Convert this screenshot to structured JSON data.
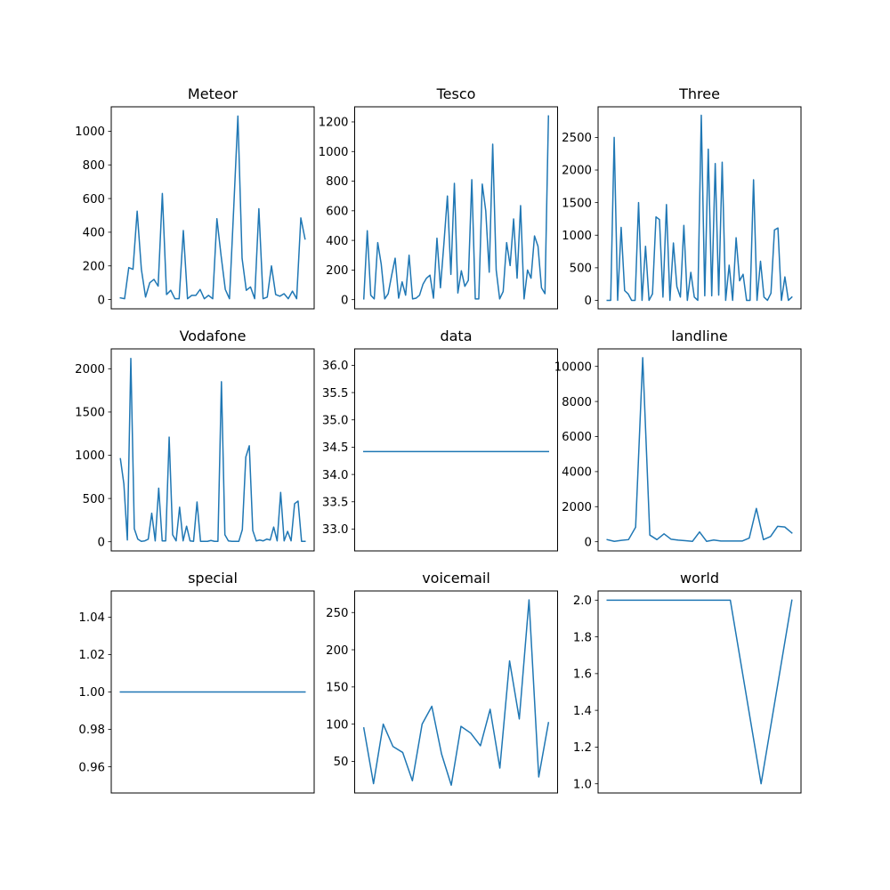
{
  "chart_data": [
    {
      "type": "line",
      "title": "Meteor",
      "ylim": [
        -55,
        1145
      ],
      "yticks": [
        0,
        200,
        400,
        600,
        800,
        1000
      ],
      "grid": false,
      "xticks_visible": false,
      "series": [
        {
          "color": "#1f77b4",
          "values": [
            10,
            5,
            190,
            180,
            525,
            180,
            15,
            100,
            120,
            80,
            630,
            30,
            55,
            5,
            5,
            410,
            5,
            25,
            25,
            60,
            5,
            25,
            5,
            480,
            260,
            60,
            5,
            540,
            1090,
            245,
            55,
            75,
            5,
            540,
            5,
            15,
            200,
            30,
            20,
            35,
            5,
            50,
            5,
            485,
            360
          ]
        }
      ]
    },
    {
      "type": "line",
      "title": "Tesco",
      "ylim": [
        -62,
        1302
      ],
      "yticks": [
        0,
        200,
        400,
        600,
        800,
        1000,
        1200
      ],
      "grid": false,
      "xticks_visible": false,
      "series": [
        {
          "color": "#1f77b4",
          "values": [
            5,
            465,
            30,
            5,
            385,
            240,
            5,
            40,
            165,
            280,
            10,
            120,
            30,
            300,
            5,
            10,
            30,
            105,
            145,
            165,
            10,
            415,
            80,
            380,
            700,
            170,
            785,
            45,
            195,
            90,
            130,
            810,
            5,
            5,
            780,
            600,
            185,
            1050,
            200,
            5,
            55,
            385,
            230,
            545,
            145,
            635,
            5,
            200,
            145,
            430,
            360,
            80,
            40,
            1240
          ]
        }
      ]
    },
    {
      "type": "line",
      "title": "Three",
      "ylim": [
        -130,
        2970
      ],
      "yticks": [
        0,
        500,
        1000,
        1500,
        2000,
        2500
      ],
      "grid": false,
      "xticks_visible": false,
      "series": [
        {
          "color": "#1f77b4",
          "values": [
            0,
            0,
            2500,
            0,
            1120,
            150,
            100,
            0,
            0,
            1500,
            0,
            830,
            0,
            100,
            1280,
            1240,
            50,
            1470,
            0,
            880,
            210,
            50,
            1150,
            0,
            430,
            50,
            0,
            2840,
            70,
            2320,
            70,
            2100,
            80,
            2120,
            0,
            540,
            0,
            960,
            300,
            400,
            0,
            0,
            1850,
            0,
            600,
            50,
            0,
            110,
            1080,
            1110,
            0,
            360,
            0,
            50
          ]
        }
      ]
    },
    {
      "type": "line",
      "title": "Vodafone",
      "ylim": [
        -106,
        2230
      ],
      "yticks": [
        0,
        500,
        1000,
        1500,
        2000
      ],
      "grid": false,
      "xticks_visible": false,
      "series": [
        {
          "color": "#1f77b4",
          "values": [
            960,
            670,
            20,
            2120,
            150,
            30,
            5,
            10,
            30,
            330,
            10,
            620,
            10,
            10,
            1210,
            80,
            10,
            400,
            10,
            180,
            10,
            5,
            460,
            5,
            5,
            5,
            15,
            5,
            5,
            1850,
            80,
            10,
            5,
            5,
            5,
            140,
            980,
            1110,
            130,
            10,
            20,
            10,
            30,
            20,
            170,
            10,
            570,
            10,
            120,
            10,
            440,
            470,
            5,
            5
          ]
        }
      ]
    },
    {
      "type": "line",
      "title": "data",
      "ylim": [
        32.6,
        36.3
      ],
      "yticks": [
        33.0,
        33.5,
        34.0,
        34.5,
        35.0,
        35.5,
        36.0
      ],
      "grid": false,
      "xticks_visible": false,
      "series": [
        {
          "color": "#1f77b4",
          "values": [
            34.42,
            34.42
          ]
        }
      ]
    },
    {
      "type": "line",
      "title": "landline",
      "ylim": [
        -524,
        11000
      ],
      "yticks": [
        0,
        2000,
        4000,
        6000,
        8000,
        10000
      ],
      "grid": false,
      "xticks_visible": false,
      "series": [
        {
          "color": "#1f77b4",
          "values": [
            120,
            20,
            80,
            120,
            830,
            10500,
            380,
            120,
            450,
            140,
            90,
            60,
            20,
            560,
            20,
            100,
            40,
            40,
            40,
            40,
            210,
            1900,
            120,
            300,
            880,
            840,
            500
          ]
        }
      ]
    },
    {
      "type": "line",
      "title": "special",
      "ylim": [
        0.946,
        1.054
      ],
      "yticks": [
        0.96,
        0.98,
        1.0,
        1.02,
        1.04
      ],
      "grid": false,
      "xticks_visible": false,
      "series": [
        {
          "color": "#1f77b4",
          "values": [
            1.0,
            1.0
          ]
        }
      ]
    },
    {
      "type": "line",
      "title": "voicemail",
      "ylim": [
        7.5,
        279
      ],
      "yticks": [
        50,
        100,
        150,
        200,
        250
      ],
      "grid": false,
      "xticks_visible": false,
      "series": [
        {
          "color": "#1f77b4",
          "values": [
            95,
            20,
            100,
            70,
            62,
            24,
            100,
            124,
            60,
            18,
            97,
            88,
            71,
            120,
            41,
            185,
            107,
            267,
            29,
            102
          ]
        }
      ]
    },
    {
      "type": "line",
      "title": "world",
      "ylim": [
        0.95,
        2.05
      ],
      "yticks": [
        1.0,
        1.2,
        1.4,
        1.6,
        1.8,
        2.0
      ],
      "grid": false,
      "xticks_visible": false,
      "series": [
        {
          "color": "#1f77b4",
          "values": [
            2.0,
            2.0,
            2.0,
            2.0,
            2.0,
            1.0,
            2.0
          ]
        }
      ]
    }
  ]
}
